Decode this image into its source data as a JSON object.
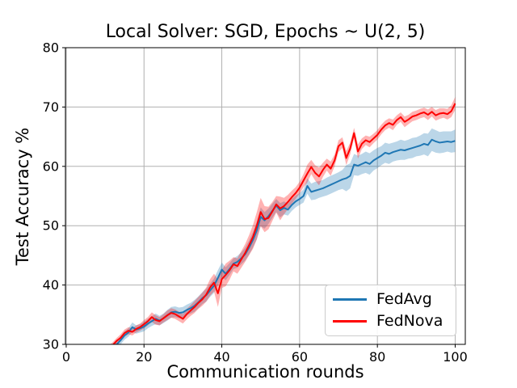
{
  "chart_data": {
    "type": "line",
    "title": "Local Solver: SGD, Epochs ~ U(2, 5)",
    "xlabel": "Communication rounds",
    "ylabel": "Test Accuracy %",
    "xlim": [
      -0.2,
      102.6
    ],
    "ylim": [
      30,
      80
    ],
    "xticks": [
      0,
      20,
      40,
      60,
      80,
      100
    ],
    "yticks": [
      30,
      40,
      50,
      60,
      70,
      80
    ],
    "grid": true,
    "grid_color": "#b0b0b0",
    "legend_position": "lower right",
    "band_opacity": 0.3,
    "x": [
      10,
      11,
      12,
      13,
      14,
      15,
      16,
      17,
      18,
      19,
      20,
      21,
      22,
      23,
      24,
      25,
      26,
      27,
      28,
      29,
      30,
      31,
      32,
      33,
      34,
      35,
      36,
      37,
      38,
      39,
      40,
      41,
      42,
      43,
      44,
      45,
      46,
      47,
      48,
      49,
      50,
      51,
      52,
      53,
      54,
      55,
      56,
      57,
      58,
      59,
      60,
      61,
      62,
      63,
      64,
      65,
      66,
      67,
      68,
      69,
      70,
      71,
      72,
      73,
      74,
      75,
      76,
      77,
      78,
      79,
      80,
      81,
      82,
      83,
      84,
      85,
      86,
      87,
      88,
      89,
      90,
      91,
      92,
      93,
      94,
      95,
      96,
      97,
      98,
      99,
      100
    ],
    "series": [
      {
        "name": "FedAvg",
        "color": "#1f77b4",
        "values": [
          28.2,
          28.8,
          29.4,
          30.0,
          30.7,
          31.5,
          32.0,
          32.9,
          32.5,
          32.7,
          33.0,
          33.5,
          33.9,
          34.3,
          34.0,
          34.4,
          34.9,
          35.4,
          35.5,
          35.3,
          35.4,
          35.8,
          36.1,
          36.5,
          37.1,
          37.8,
          38.3,
          39.1,
          39.9,
          41.2,
          42.6,
          41.9,
          42.7,
          43.6,
          43.9,
          44.5,
          45.2,
          46.3,
          47.6,
          49.2,
          51.5,
          50.9,
          51.6,
          52.5,
          53.4,
          52.6,
          53.0,
          52.7,
          53.5,
          54.1,
          54.5,
          55.0,
          56.7,
          55.7,
          55.9,
          56.1,
          56.3,
          56.6,
          56.9,
          57.2,
          57.5,
          57.8,
          58.0,
          58.4,
          60.3,
          60.1,
          60.4,
          60.7,
          60.4,
          61.0,
          61.4,
          61.8,
          62.3,
          62.1,
          62.4,
          62.6,
          62.8,
          62.7,
          62.9,
          63.1,
          63.3,
          63.5,
          63.8,
          63.6,
          64.5,
          64.2,
          64.0,
          64.1,
          64.2,
          64.1,
          64.3
        ],
        "band": [
          0.6,
          0.6,
          0.6,
          0.6,
          0.7,
          0.7,
          0.7,
          0.8,
          0.7,
          0.7,
          0.8,
          0.8,
          0.8,
          0.9,
          0.8,
          0.8,
          0.9,
          0.9,
          0.9,
          0.9,
          0.9,
          0.9,
          0.9,
          1.0,
          1.0,
          1.0,
          1.1,
          1.1,
          1.2,
          1.3,
          1.2,
          1.1,
          1.0,
          0.9,
          1.0,
          1.0,
          1.1,
          1.2,
          1.3,
          1.5,
          1.6,
          1.4,
          1.3,
          1.2,
          1.1,
          1.2,
          1.1,
          1.0,
          1.0,
          1.0,
          1.0,
          1.1,
          1.3,
          1.4,
          1.5,
          1.4,
          1.4,
          1.5,
          1.5,
          1.5,
          1.5,
          1.6,
          2.2,
          2.1,
          1.8,
          1.7,
          1.7,
          1.8,
          1.8,
          1.7,
          1.7,
          1.6,
          1.7,
          1.7,
          1.6,
          1.6,
          1.7,
          1.6,
          1.6,
          1.7,
          1.6,
          1.7,
          1.8,
          1.9,
          1.9,
          1.9,
          1.8,
          1.8,
          1.7,
          1.8,
          1.9
        ]
      },
      {
        "name": "FedNova",
        "color": "#ff0000",
        "values": [
          28.6,
          29.3,
          29.9,
          30.6,
          31.1,
          31.9,
          32.3,
          32.1,
          32.6,
          32.9,
          33.4,
          33.9,
          34.6,
          34.1,
          33.9,
          34.4,
          34.9,
          35.3,
          35.1,
          34.7,
          34.3,
          35.1,
          35.7,
          36.3,
          37.0,
          37.6,
          38.4,
          39.6,
          40.4,
          38.6,
          41.0,
          41.7,
          42.5,
          43.5,
          43.2,
          44.3,
          45.4,
          46.7,
          48.1,
          50.0,
          52.3,
          51.1,
          51.3,
          52.4,
          53.6,
          52.9,
          53.3,
          54.0,
          54.8,
          55.5,
          56.4,
          57.6,
          58.8,
          59.9,
          58.9,
          58.3,
          59.4,
          60.3,
          59.6,
          61.0,
          63.4,
          64.0,
          61.4,
          63.0,
          65.6,
          62.5,
          63.8,
          64.4,
          64.1,
          64.7,
          65.3,
          66.2,
          66.9,
          67.3,
          67.0,
          67.8,
          68.3,
          67.5,
          67.9,
          68.4,
          68.6,
          68.9,
          69.1,
          68.7,
          69.2,
          68.6,
          68.9,
          69.0,
          68.8,
          69.3,
          70.6
        ],
        "band": [
          0.5,
          0.5,
          0.5,
          0.5,
          0.6,
          0.6,
          0.6,
          0.6,
          0.6,
          0.6,
          0.7,
          0.7,
          0.8,
          0.8,
          0.7,
          0.7,
          0.8,
          0.8,
          0.8,
          0.8,
          0.8,
          0.9,
          0.9,
          1.0,
          1.0,
          1.1,
          1.2,
          1.4,
          1.5,
          2.3,
          1.5,
          1.9,
          1.6,
          1.2,
          1.3,
          1.4,
          1.5,
          1.7,
          2.0,
          2.3,
          2.4,
          2.2,
          1.9,
          1.6,
          1.4,
          2.0,
          1.4,
          1.2,
          1.1,
          1.0,
          1.0,
          1.1,
          1.5,
          1.2,
          1.3,
          1.5,
          1.2,
          1.0,
          1.2,
          1.0,
          1.0,
          0.9,
          1.2,
          1.0,
          0.9,
          1.2,
          0.9,
          0.8,
          0.9,
          0.8,
          0.8,
          0.8,
          0.8,
          0.8,
          0.9,
          0.8,
          0.8,
          0.9,
          0.8,
          0.8,
          0.8,
          0.8,
          0.8,
          0.9,
          0.8,
          0.9,
          0.9,
          0.8,
          0.9,
          1.0,
          1.1
        ]
      }
    ]
  }
}
